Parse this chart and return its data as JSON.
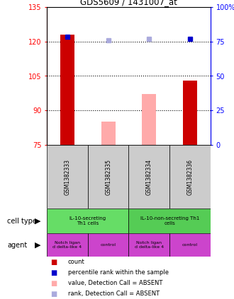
{
  "title": "GDS5609 / 1431007_at",
  "samples": [
    "GSM1382333",
    "GSM1382335",
    "GSM1382334",
    "GSM1382336"
  ],
  "ylim": [
    75,
    135
  ],
  "yticks_left": [
    75,
    90,
    105,
    120,
    135
  ],
  "yticks_right": [
    0,
    25,
    50,
    75,
    100
  ],
  "ytick_labels_right": [
    "0",
    "25",
    "50",
    "75",
    "100%"
  ],
  "dotted_lines": [
    90,
    105,
    120
  ],
  "bar_values": [
    123,
    null,
    null,
    103
  ],
  "bar_color_present": "#cc0000",
  "bar_color_absent": "#ffaaaa",
  "absent_bar_values": [
    null,
    85,
    97,
    null
  ],
  "rank_dots_present": [
    122,
    null,
    null,
    121
  ],
  "rank_dots_absent": [
    null,
    120.5,
    121,
    null
  ],
  "rank_dot_color_present": "#0000cc",
  "rank_dot_color_absent": "#aaaadd",
  "bar_bottom": 75,
  "bar_width": 0.35,
  "sample_box_color": "#cccccc",
  "cell_type_data": [
    {
      "cols": [
        0,
        1
      ],
      "label": "IL-10-secreting\nTh1 cells",
      "color": "#66dd66"
    },
    {
      "cols": [
        2,
        3
      ],
      "label": "IL-10-non-secreting Th1\ncells",
      "color": "#55cc55"
    }
  ],
  "agent_data": [
    {
      "cols": [
        0
      ],
      "label": "Notch ligan\nd delta-like 4",
      "color": "#cc44cc"
    },
    {
      "cols": [
        1
      ],
      "label": "control",
      "color": "#cc44cc"
    },
    {
      "cols": [
        2
      ],
      "label": "Notch ligan\nd delta-like 4",
      "color": "#cc44cc"
    },
    {
      "cols": [
        3
      ],
      "label": "control",
      "color": "#cc44cc"
    }
  ],
  "legend_items": [
    {
      "color": "#cc0000",
      "label": "count"
    },
    {
      "color": "#0000cc",
      "label": "percentile rank within the sample"
    },
    {
      "color": "#ffaaaa",
      "label": "value, Detection Call = ABSENT"
    },
    {
      "color": "#aaaadd",
      "label": "rank, Detection Call = ABSENT"
    }
  ]
}
